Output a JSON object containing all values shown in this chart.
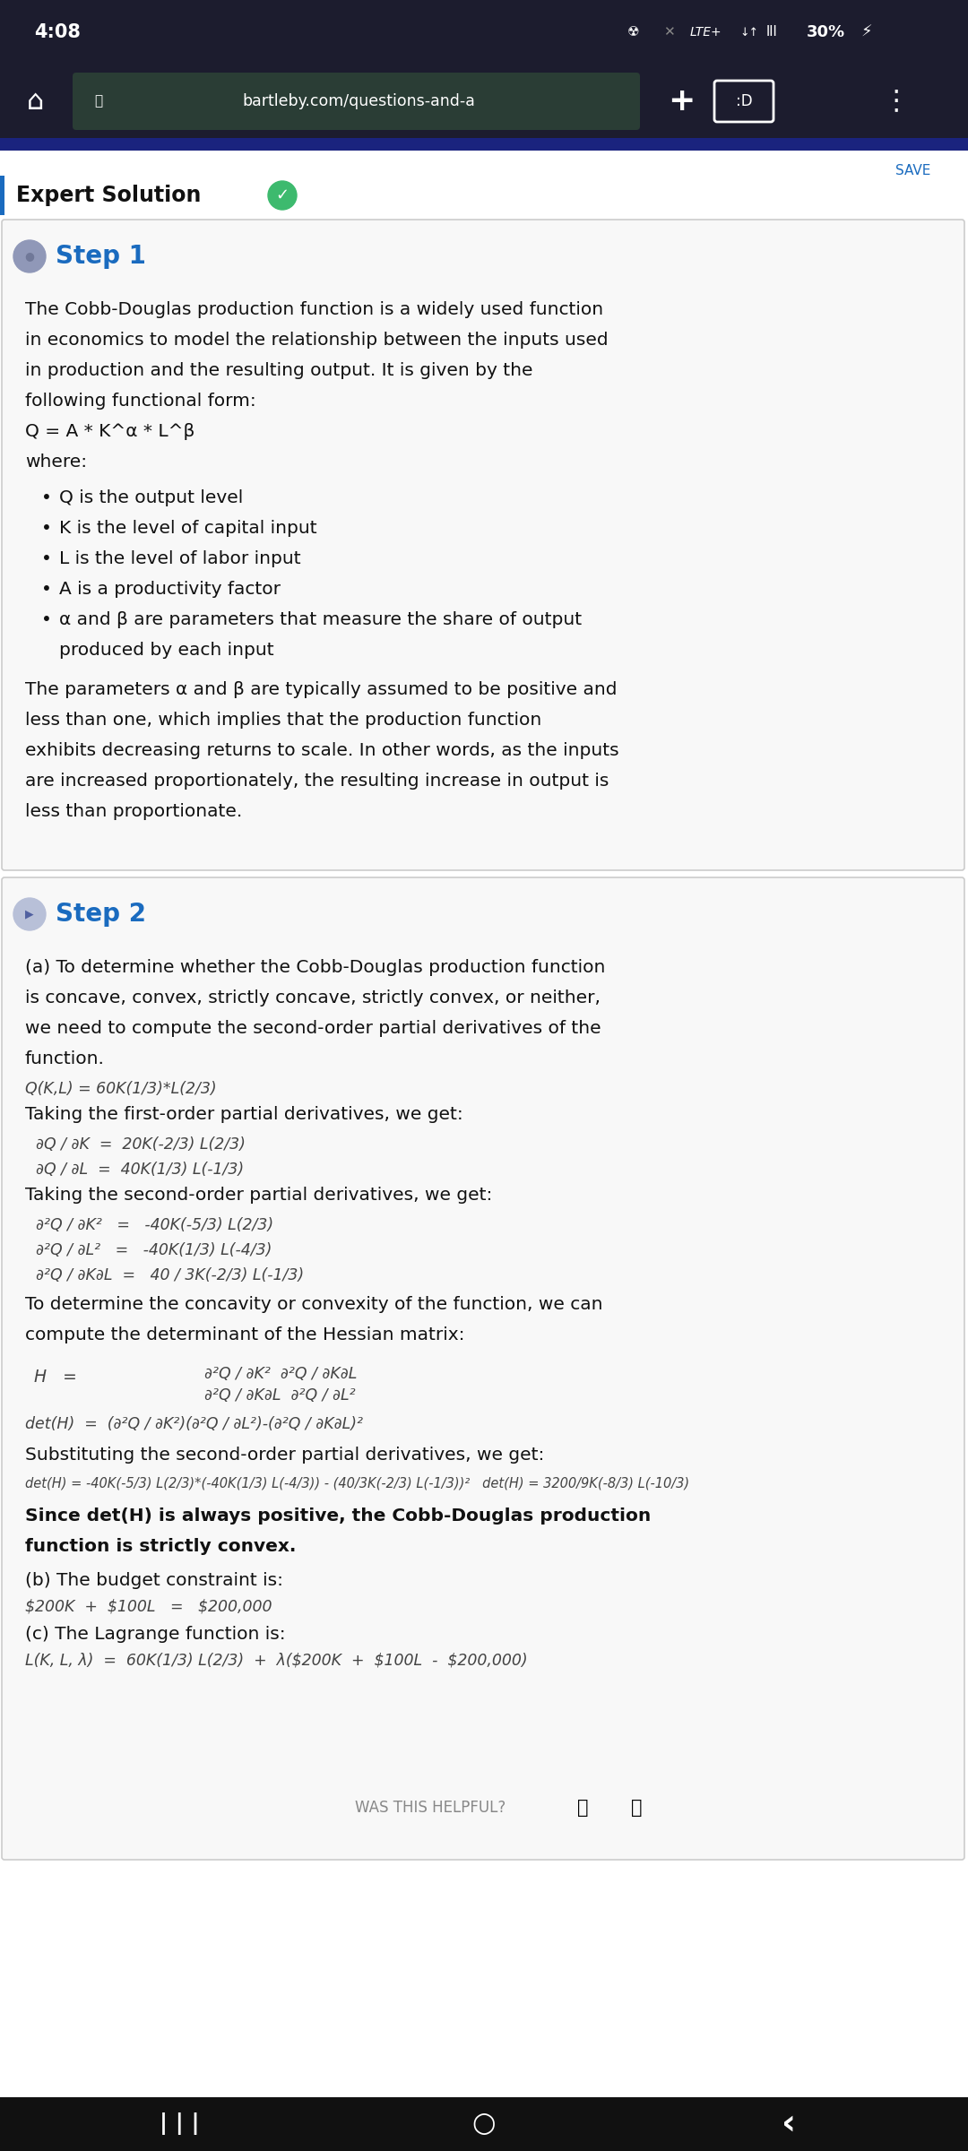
{
  "status_bar_text": "4:08",
  "url_bar": "bartleby.com/questions-and-a",
  "save_text": "SAVE",
  "expert_solution_text": "Expert Solution",
  "step1_title": "Step 1",
  "step1_body": [
    "The Cobb-Douglas production function is a widely used function",
    "in economics to model the relationship between the inputs used",
    "in production and the resulting output. It is given by the",
    "following functional form:",
    "Q = A * K^α * L^β",
    "where:"
  ],
  "bullets": [
    "Q is the output level",
    "K is the level of capital input",
    "L is the level of labor input",
    "A is a productivity factor",
    "α and β are parameters that measure the share of output",
    "       produced by each input"
  ],
  "step1_body2": [
    "The parameters α and β are typically assumed to be positive and",
    "less than one, which implies that the production function",
    "exhibits decreasing returns to scale. In other words, as the inputs",
    "are increased proportionately, the resulting increase in output is",
    "less than proportionate."
  ],
  "step2_title": "Step 2",
  "step2_body": [
    "(a) To determine whether the Cobb-Douglas production function",
    "is concave, convex, strictly concave, strictly convex, or neither,",
    "we need to compute the second-order partial derivatives of the",
    "function."
  ],
  "formula1": "Q(K,L) = 60K(1/3)*L(2/3)",
  "taking_first": "Taking the first-order partial derivatives, we get:",
  "first_deriv1": "∂Q / ∂K  =  20K(-2/3) L(2/3)",
  "first_deriv2": "∂Q / ∂L  =  40K(1/3) L(-1/3)",
  "taking_second": "Taking the second-order partial derivatives, we get:",
  "second_deriv1": "∂²Q / ∂K²   =   -40K(-5/3) L(2/3)",
  "second_deriv2": "∂²Q / ∂L²   =   -40K(1/3) L(-4/3)",
  "second_deriv3": "∂²Q / ∂K∂L  =   40 / 3K(-2/3) L(-1/3)",
  "hessian_text1": "To determine the concavity or convexity of the function, we can",
  "hessian_text2": "compute the determinant of the Hessian matrix:",
  "hessian_label": "H   =",
  "hessian_row1": "∂²Q / ∂K²  ∂²Q / ∂K∂L",
  "hessian_row2": "∂²Q / ∂K∂L  ∂²Q / ∂L²",
  "det_formula": "det(H)  =  (∂²Q / ∂K²)(∂²Q / ∂L²)-(∂²Q / ∂K∂L)²",
  "substituting": "Substituting the second-order partial derivatives, we get:",
  "det_result": "det(H) = -40K(-5/3) L(2/3)*(-40K(1/3) L(-4/3)) - (40/3K(-2/3) L(-1/3))²   det(H) = 3200/9K(-8/3) L(-10/3)",
  "conclusion_bold1": "Since det(H) is always positive, the Cobb-Douglas production",
  "conclusion_bold2": "function is strictly convex.",
  "part_b": "(b) The budget constraint is:",
  "budget": "$200K  +  $100L   =   $200,000",
  "part_c": "(c) The Lagrange function is:",
  "lagrange": "L(K, L, λ)  =  60K(1/3) L(2/3)  +  λ($200K  +  $100L  -  $200,000)",
  "helpful_text": "WAS THIS HELPFUL?",
  "status_bg": "#1c1c2e",
  "url_bg": "#2a3d35",
  "content_bg": "#ffffff",
  "step_title_color": "#1a6bbf",
  "text_color": "#111111",
  "formula_color": "#444444",
  "green_check": "#3dba6e",
  "left_border_color": "#1a6bbf",
  "step_circle1": "#9098b8",
  "step_circle2": "#9098b8",
  "blue_bar_color": "#1a237e",
  "bottom_nav_color": "#111111"
}
